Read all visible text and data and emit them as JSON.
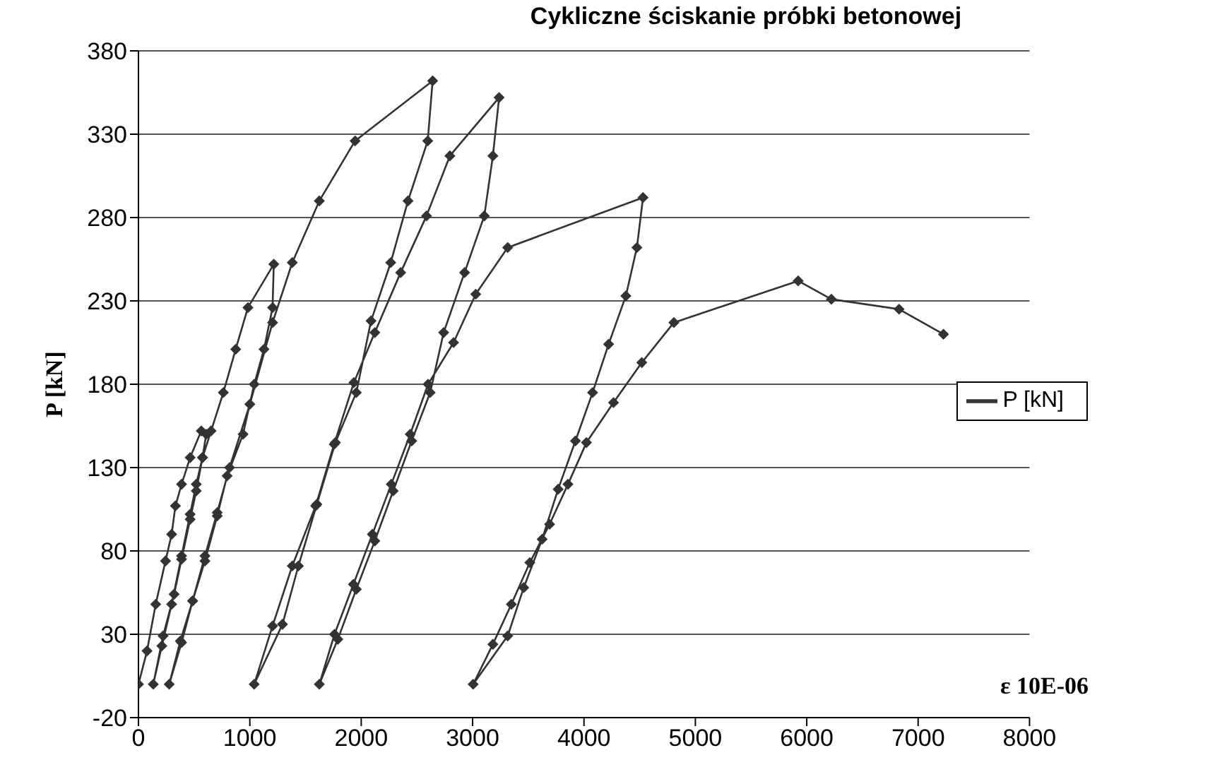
{
  "chart_data": {
    "type": "line",
    "title": "Cykliczne ściskanie próbki betonowej",
    "xlabel": "ε 10E-06",
    "ylabel": "P [kN]",
    "xlim": [
      0,
      8000
    ],
    "xticks": [
      0,
      1000,
      2000,
      3000,
      4000,
      5000,
      6000,
      7000,
      8000
    ],
    "ylim": [
      -20,
      380
    ],
    "yticks": [
      -20,
      30,
      80,
      130,
      180,
      230,
      280,
      330,
      380
    ],
    "grid": "y",
    "legend": "right",
    "marker": "diamond",
    "line_style": "solid",
    "series": [
      {
        "name": "P [kN]",
        "color": "#333333",
        "x": [
          0,
          77,
          155,
          243,
          298,
          332,
          387,
          464,
          564,
          608,
          575,
          519,
          464,
          387,
          298,
          210,
          133,
          221,
          320,
          387,
          464,
          519,
          575,
          652,
          762,
          873,
          983,
          1215,
          1204,
          1127,
          1039,
          939,
          796,
          707,
          597,
          486,
          387,
          276,
          376,
          486,
          597,
          707,
          818,
          1000,
          1204,
          1381,
          1624,
          1945,
          2641,
          2597,
          2420,
          2265,
          2088,
          1956,
          1768,
          1602,
          1436,
          1293,
          1039,
          1204,
          1381,
          1591,
          1757,
          1934,
          2122,
          2354,
          2586,
          2796,
          3238,
          3182,
          3105,
          2928,
          2740,
          2619,
          2453,
          2287,
          2122,
          1956,
          1790,
          1624,
          1760,
          1930,
          2100,
          2270,
          2440,
          2600,
          2829,
          3028,
          3315,
          4530,
          4475,
          4376,
          4221,
          4077,
          3923,
          3768,
          3624,
          3459,
          3315,
          3005,
          3182,
          3348,
          3514,
          3691,
          3856,
          4022,
          4265,
          4519,
          4807,
          5923,
          6221,
          6829,
          7227
        ],
        "values": [
          0,
          20,
          48,
          74,
          90,
          107,
          120,
          136,
          152,
          150,
          136,
          120,
          102,
          77,
          48,
          23,
          0,
          29,
          54,
          75,
          99,
          116,
          136,
          152,
          175,
          201,
          226,
          252,
          226,
          201,
          180,
          150,
          125,
          101,
          74,
          50,
          25,
          0,
          26,
          50,
          77,
          103,
          130,
          168,
          217,
          253,
          290,
          326,
          362,
          326,
          290,
          253,
          218,
          175,
          145,
          108,
          71,
          36,
          0,
          35,
          71,
          107,
          144,
          181,
          211,
          247,
          281,
          317,
          352,
          317,
          281,
          247,
          211,
          175,
          146,
          116,
          86,
          57,
          27,
          0,
          30,
          60,
          90,
          120,
          150,
          180,
          205,
          234,
          262,
          292,
          262,
          233,
          204,
          175,
          146,
          117,
          87,
          58,
          29,
          0,
          24,
          48,
          73,
          96,
          120,
          145,
          169,
          193,
          217,
          242,
          231,
          225,
          210
        ]
      }
    ]
  }
}
